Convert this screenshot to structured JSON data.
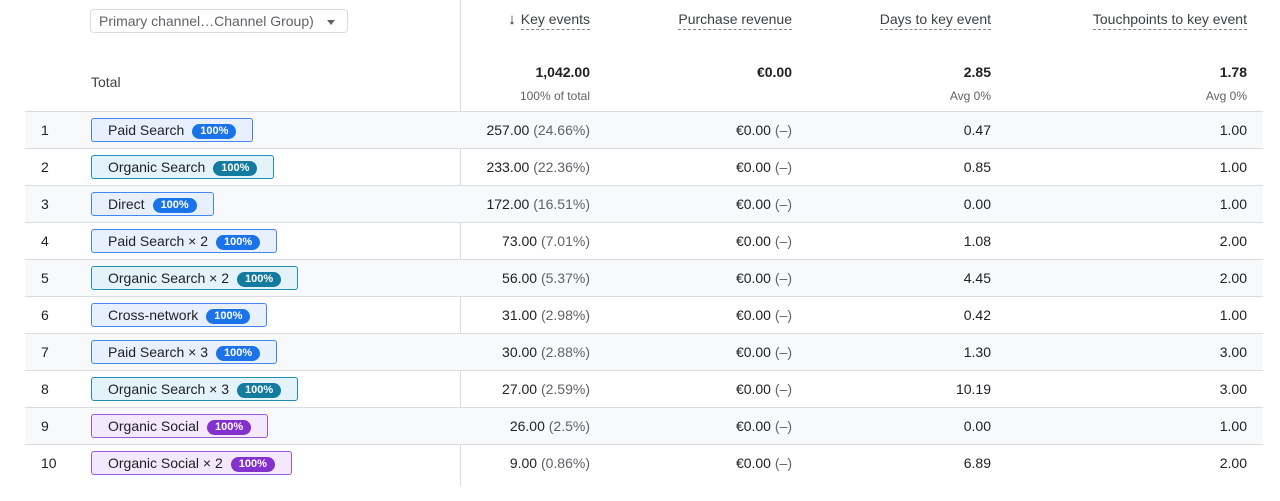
{
  "dimension_selector": {
    "label": "Primary channel…Channel Group)"
  },
  "columns": [
    {
      "label": "Key events",
      "sorted": true,
      "sort_icon": "arrow-down-icon"
    },
    {
      "label": "Purchase revenue"
    },
    {
      "label": "Days to key event"
    },
    {
      "label": "Touchpoints to key event"
    }
  ],
  "totals": {
    "label": "Total",
    "key_events": "1,042.00",
    "key_events_sub": "100% of total",
    "revenue": "€0.00",
    "days": "2.85",
    "days_sub": "Avg 0%",
    "touchpoints": "1.78",
    "touchpoints_sub": "Avg 0%"
  },
  "rows": [
    {
      "index": "1",
      "path": "Paid Search",
      "badge": "100%",
      "chip_color": "#1a73e8",
      "key_events": "257.00",
      "key_events_pct": "(24.66%)",
      "revenue": "€0.00",
      "revenue_pct": "(–)",
      "days": "0.47",
      "touchpoints": "1.00"
    },
    {
      "index": "2",
      "path": "Organic Search",
      "badge": "100%",
      "chip_color": "#137aa0",
      "key_events": "233.00",
      "key_events_pct": "(22.36%)",
      "revenue": "€0.00",
      "revenue_pct": "(–)",
      "days": "0.85",
      "touchpoints": "1.00"
    },
    {
      "index": "3",
      "path": "Direct",
      "badge": "100%",
      "chip_color": "#1a73e8",
      "key_events": "172.00",
      "key_events_pct": "(16.51%)",
      "revenue": "€0.00",
      "revenue_pct": "(–)",
      "days": "0.00",
      "touchpoints": "1.00"
    },
    {
      "index": "4",
      "path": "Paid Search × 2",
      "badge": "100%",
      "chip_color": "#1a73e8",
      "key_events": "73.00",
      "key_events_pct": "(7.01%)",
      "revenue": "€0.00",
      "revenue_pct": "(–)",
      "days": "1.08",
      "touchpoints": "2.00"
    },
    {
      "index": "5",
      "path": "Organic Search × 2",
      "badge": "100%",
      "chip_color": "#137aa0",
      "key_events": "56.00",
      "key_events_pct": "(5.37%)",
      "revenue": "€0.00",
      "revenue_pct": "(–)",
      "days": "4.45",
      "touchpoints": "2.00"
    },
    {
      "index": "6",
      "path": "Cross-network",
      "badge": "100%",
      "chip_color": "#1a73e8",
      "key_events": "31.00",
      "key_events_pct": "(2.98%)",
      "revenue": "€0.00",
      "revenue_pct": "(–)",
      "days": "0.42",
      "touchpoints": "1.00"
    },
    {
      "index": "7",
      "path": "Paid Search × 3",
      "badge": "100%",
      "chip_color": "#1a73e8",
      "key_events": "30.00",
      "key_events_pct": "(2.88%)",
      "revenue": "€0.00",
      "revenue_pct": "(–)",
      "days": "1.30",
      "touchpoints": "3.00"
    },
    {
      "index": "8",
      "path": "Organic Search × 3",
      "badge": "100%",
      "chip_color": "#137aa0",
      "key_events": "27.00",
      "key_events_pct": "(2.59%)",
      "revenue": "€0.00",
      "revenue_pct": "(–)",
      "days": "10.19",
      "touchpoints": "3.00"
    },
    {
      "index": "9",
      "path": "Organic Social",
      "badge": "100%",
      "chip_color": "#8430ce",
      "key_events": "26.00",
      "key_events_pct": "(2.5%)",
      "revenue": "€0.00",
      "revenue_pct": "(–)",
      "days": "0.00",
      "touchpoints": "1.00"
    },
    {
      "index": "10",
      "path": "Organic Social × 2",
      "badge": "100%",
      "chip_color": "#8430ce",
      "key_events": "9.00",
      "key_events_pct": "(0.86%)",
      "revenue": "€0.00",
      "revenue_pct": "(–)",
      "days": "6.89",
      "touchpoints": "2.00"
    }
  ]
}
